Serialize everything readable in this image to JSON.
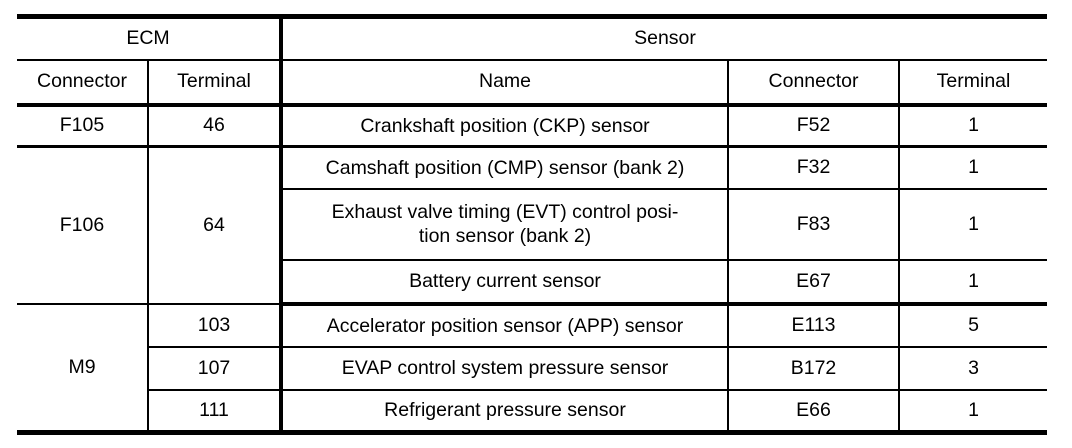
{
  "colors": {
    "text": "#000000",
    "border": "#000000",
    "background": "#ffffff"
  },
  "table": {
    "header": {
      "ecm": "ECM",
      "sensor": "Sensor",
      "ecm_connector": "Connector",
      "ecm_terminal": "Terminal",
      "name": "Name",
      "sensor_connector": "Connector",
      "sensor_terminal": "Terminal"
    },
    "rows": [
      {
        "ecm_connector": "F105",
        "ecm_terminal": "46",
        "name": "Crankshaft position (CKP) sensor",
        "sensor_connector": "F52",
        "sensor_terminal": "1"
      },
      {
        "ecm_connector": "F106",
        "ecm_terminal": "64",
        "name": "Camshaft position (CMP) sensor (bank 2)",
        "sensor_connector": "F32",
        "sensor_terminal": "1"
      },
      {
        "name": "Exhaust valve timing (EVT) control posi-\ntion sensor (bank 2)",
        "sensor_connector": "F83",
        "sensor_terminal": "1"
      },
      {
        "name": "Battery current sensor",
        "sensor_connector": "E67",
        "sensor_terminal": "1"
      },
      {
        "ecm_connector": "M9",
        "ecm_terminal": "103",
        "name": "Accelerator position sensor (APP) sensor",
        "sensor_connector": "E113",
        "sensor_terminal": "5"
      },
      {
        "ecm_terminal": "107",
        "name": "EVAP control system pressure sensor",
        "sensor_connector": "B172",
        "sensor_terminal": "3"
      },
      {
        "ecm_terminal": "111",
        "name": "Refrigerant pressure sensor",
        "sensor_connector": "E66",
        "sensor_terminal": "1"
      }
    ]
  }
}
